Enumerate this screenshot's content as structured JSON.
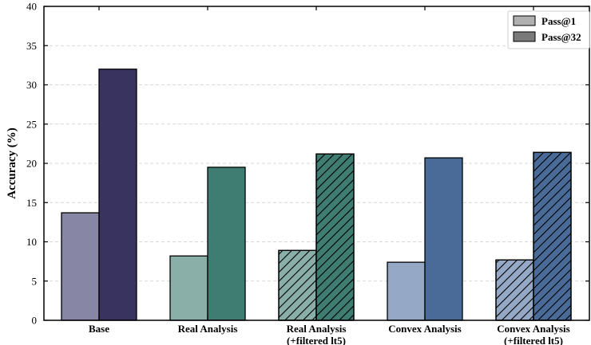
{
  "chart_data": {
    "type": "bar",
    "categories": [
      [
        "Base"
      ],
      [
        "Real Analysis"
      ],
      [
        "Real Analysis",
        "(+filtered lt5)"
      ],
      [
        "Convex Analysis"
      ],
      [
        "Convex Analysis",
        "(+filtered lt5)"
      ]
    ],
    "series": [
      {
        "name": "Pass@1",
        "values": [
          13.7,
          8.2,
          8.9,
          7.4,
          7.7
        ]
      },
      {
        "name": "Pass@32",
        "values": [
          32.0,
          19.5,
          21.2,
          20.7,
          21.4
        ]
      }
    ],
    "bar_colors": [
      [
        "#8886a5",
        "#393360"
      ],
      [
        "#8aafa9",
        "#3f7c72"
      ],
      [
        "#8aafa9",
        "#3f7c72"
      ],
      [
        "#95a9c6",
        "#4a6b98"
      ],
      [
        "#95a9c6",
        "#4a6b98"
      ]
    ],
    "hatched": [
      false,
      false,
      true,
      false,
      true
    ],
    "legend_colors": [
      "#b0b0b0",
      "#7a7a7a"
    ],
    "ylabel": "Accuracy (%)",
    "xlabel": "",
    "ylim": [
      0,
      40
    ],
    "yticks": [
      0,
      5,
      10,
      15,
      20,
      25,
      30,
      35,
      40
    ],
    "grid": "horizontal dashed",
    "legend_position": "top-right"
  }
}
